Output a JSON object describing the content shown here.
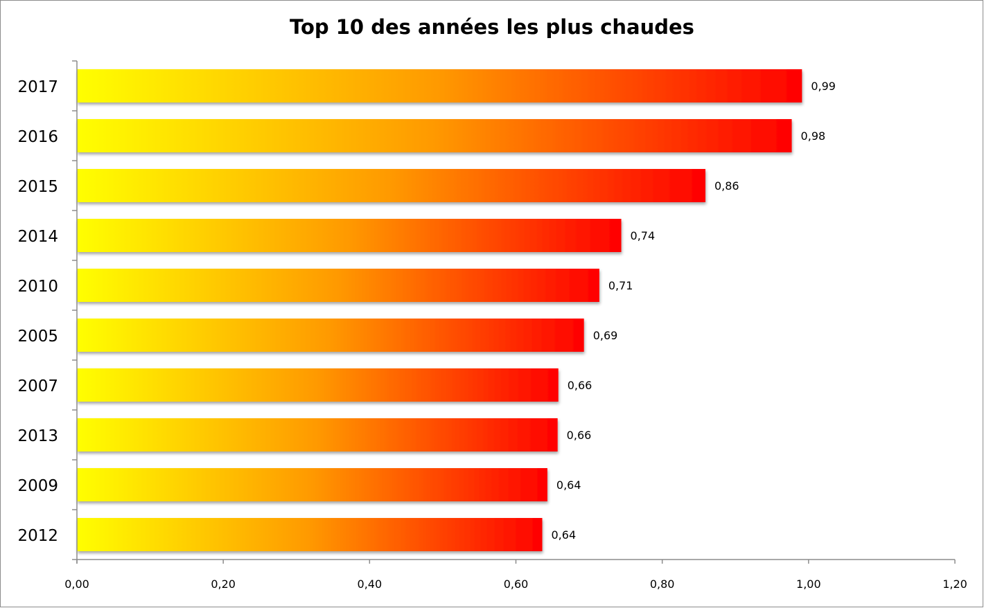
{
  "chart_data": {
    "type": "bar",
    "orientation": "horizontal",
    "title": "Top 10 des années les plus chaudes",
    "categories": [
      "2017",
      "2016",
      "2015",
      "2014",
      "2010",
      "2005",
      "2007",
      "2013",
      "2009",
      "2012"
    ],
    "values": [
      0.991,
      0.977,
      0.859,
      0.744,
      0.714,
      0.693,
      0.658,
      0.657,
      0.643,
      0.636
    ],
    "data_labels": [
      "0,99",
      "0,98",
      "0,86",
      "0,74",
      "0,71",
      "0,69",
      "0,66",
      "0,66",
      "0,64",
      "0,64"
    ],
    "xlim": [
      0,
      1.2
    ],
    "x_ticks": [
      0,
      0.2,
      0.4,
      0.6,
      0.8,
      1.0,
      1.2
    ],
    "x_tick_labels": [
      "0,00",
      "0,20",
      "0,40",
      "0,60",
      "0,80",
      "1,00",
      "1,20"
    ],
    "xlabel": "",
    "ylabel": "",
    "grid": false,
    "legend": "none",
    "bar_gradient": [
      "#ffff00",
      "#ff9900",
      "#ff0000"
    ]
  }
}
